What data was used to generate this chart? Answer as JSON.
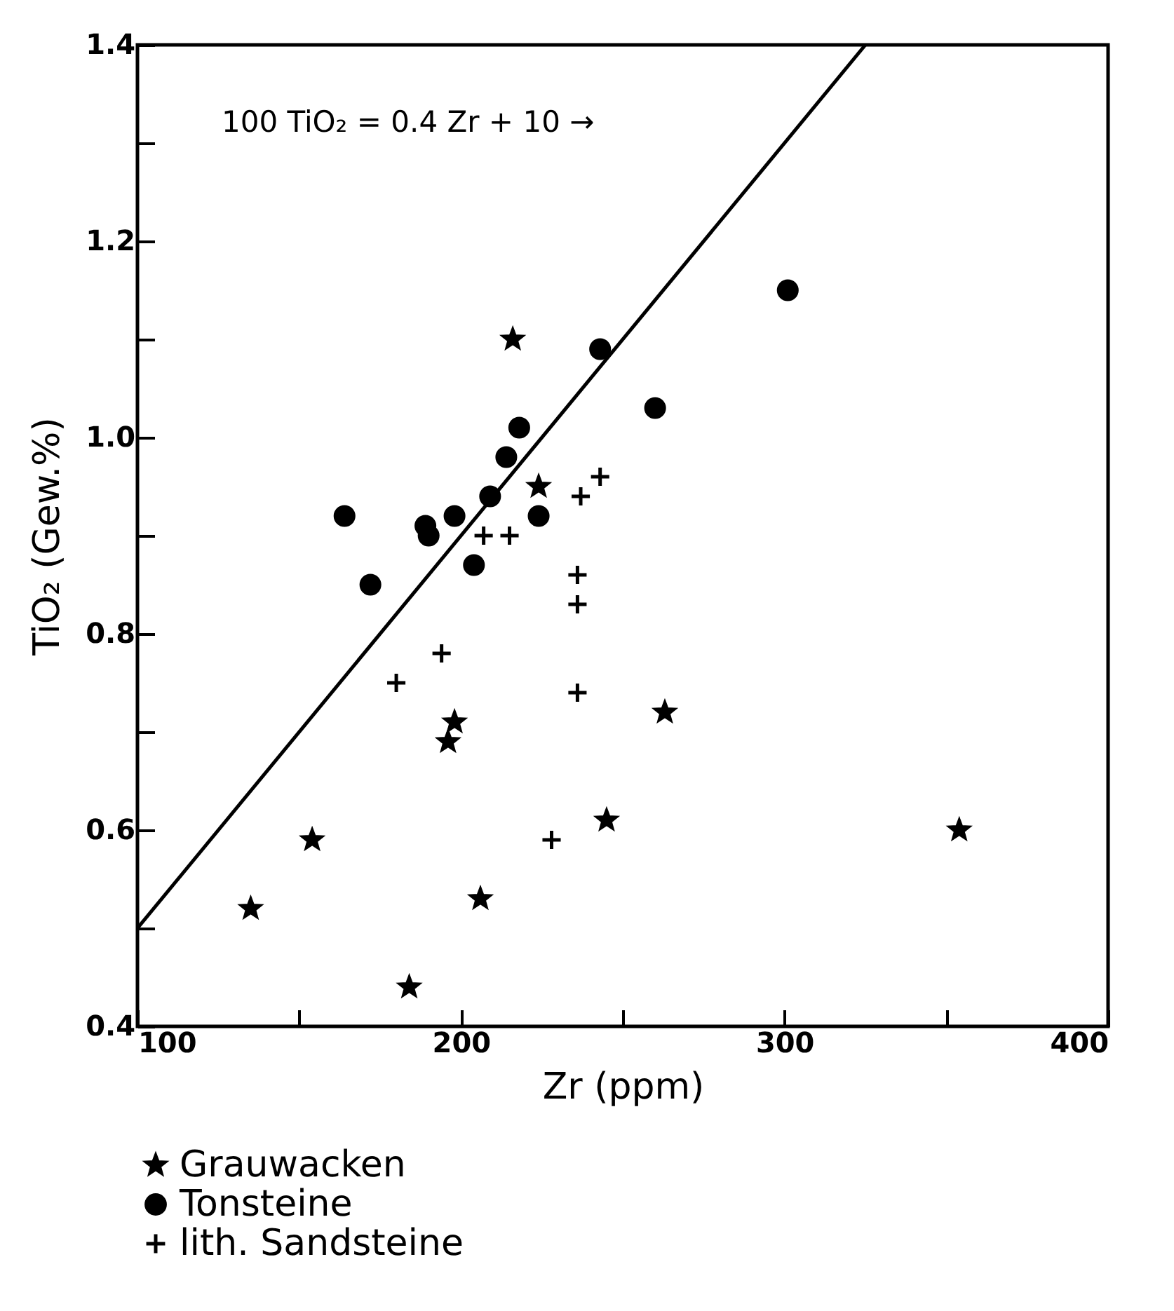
{
  "chart_data": {
    "type": "scatter",
    "xlabel": "Zr (ppm)",
    "ylabel": "TiO₂ (Gew.%)",
    "xlim": [
      100,
      400
    ],
    "ylim": [
      0.4,
      1.4
    ],
    "xticks": [
      100,
      {
        "value": 150,
        "label": null
      },
      200,
      {
        "value": 250,
        "label": null
      },
      300,
      {
        "value": 350,
        "label": null
      },
      400
    ],
    "yticks": [
      0.4,
      {
        "value": 0.5,
        "label": null
      },
      0.6,
      {
        "value": 0.7,
        "label": null
      },
      0.8,
      {
        "value": 0.9,
        "label": null
      },
      {
        "value": 1,
        "label": "1.0"
      },
      {
        "value": 1.1,
        "label": null
      },
      1.2,
      {
        "value": 1.3,
        "label": null
      },
      1.4
    ],
    "grid": false,
    "legend": "bottom left",
    "annotations": [
      "100 TiO₂ = 0.4 Zr + 10 →"
    ],
    "series": [
      {
        "name": "Grauwacken",
        "color": "#000000",
        "marker": "star",
        "x": [
          216,
          224,
          198,
          196,
          263,
          154,
          135,
          206,
          184,
          245,
          354
        ],
        "values": [
          1.1,
          0.95,
          0.71,
          0.69,
          0.72,
          0.59,
          0.52,
          0.53,
          0.44,
          0.61,
          0.6
        ]
      },
      {
        "name": "Tonsteine",
        "color": "#000000",
        "marker": "circle",
        "x": [
          164,
          172,
          189,
          190,
          198,
          204,
          209,
          214,
          218,
          224,
          243,
          260,
          301
        ],
        "values": [
          0.92,
          0.85,
          0.91,
          0.9,
          0.92,
          0.87,
          0.94,
          0.98,
          1.01,
          0.92,
          1.09,
          1.03,
          1.15
        ]
      },
      {
        "name": "lith. Sandsteine",
        "color": "#000000",
        "marker": "cross",
        "x": [
          243,
          237,
          207,
          215,
          236,
          236,
          194,
          180,
          236,
          228
        ],
        "values": [
          0.96,
          0.94,
          0.9,
          0.9,
          0.86,
          0.83,
          0.78,
          0.75,
          0.74,
          0.59
        ]
      },
      {
        "type": "line",
        "color": "#000000",
        "line_style": "solid",
        "x": [
          100,
          325
        ],
        "values": [
          0.5,
          1.4
        ]
      }
    ]
  }
}
